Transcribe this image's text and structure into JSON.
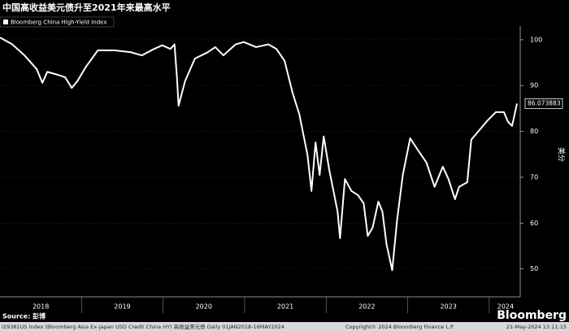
{
  "chart_data": {
    "type": "line",
    "title": "中国高收益美元债升至2021年来最高水平",
    "y_axis_label": "美分",
    "source": "Source: 彭博",
    "brand": "Bloomberg",
    "xlim": [
      2018,
      2024.38
    ],
    "xticks": [
      {
        "value": 2018.5,
        "label": "2018"
      },
      {
        "value": 2019.5,
        "label": "2019"
      },
      {
        "value": 2020.5,
        "label": "2020"
      },
      {
        "value": 2021.5,
        "label": "2021"
      },
      {
        "value": 2022.5,
        "label": "2022"
      },
      {
        "value": 2023.5,
        "label": "2023"
      },
      {
        "value": 2024.2,
        "label": "2024"
      }
    ],
    "ylim": [
      43.9,
      103
    ],
    "yticks": [
      50,
      60,
      70,
      80,
      90,
      100
    ],
    "grid": true,
    "x": [
      2018.0,
      2018.15,
      2018.3,
      2018.45,
      2018.52,
      2018.58,
      2018.7,
      2018.8,
      2018.88,
      2018.95,
      2019.05,
      2019.2,
      2019.4,
      2019.6,
      2019.74,
      2019.89,
      2019.99,
      2020.09,
      2020.14,
      2020.17,
      2020.19,
      2020.27,
      2020.39,
      2020.54,
      2020.64,
      2020.74,
      2020.89,
      2020.99,
      2021.14,
      2021.29,
      2021.39,
      2021.49,
      2021.59,
      2021.67,
      2021.73,
      2021.77,
      2021.82,
      2021.87,
      2021.92,
      2021.97,
      2022.04,
      2022.09,
      2022.14,
      2022.17,
      2022.23,
      2022.31,
      2022.39,
      2022.46,
      2022.51,
      2022.57,
      2022.64,
      2022.69,
      2022.74,
      2022.81,
      2022.87,
      2022.94,
      2023.03,
      2023.13,
      2023.23,
      2023.33,
      2023.43,
      2023.5,
      2023.58,
      2023.63,
      2023.73,
      2023.78,
      2023.88,
      2023.98,
      2024.08,
      2024.18,
      2024.23,
      2024.28,
      2024.34
    ],
    "series": [
      {
        "name": "Bloomberg China High-Yield Index",
        "color": "#ffffff",
        "values": [
          100.5,
          99,
          96.6,
          93.6,
          90.6,
          93,
          92.4,
          91.8,
          89.5,
          91,
          94,
          97.7,
          97.7,
          97.3,
          96.6,
          98,
          98.8,
          98,
          99,
          91.8,
          85.6,
          91,
          95.9,
          97.2,
          98.4,
          96.6,
          99,
          99.5,
          98.4,
          99,
          98,
          95.4,
          88.3,
          83.8,
          78.5,
          75,
          67,
          77.6,
          70.5,
          78.9,
          71.4,
          67,
          62.5,
          56.7,
          69.6,
          67,
          66.1,
          64.3,
          57.2,
          59,
          64.7,
          62.5,
          55.4,
          49.7,
          60.7,
          70.5,
          78.5,
          75.8,
          73.2,
          67.9,
          72.3,
          69.6,
          65.2,
          67.9,
          68.9,
          78.2,
          80.3,
          82.4,
          84.2,
          84.2,
          82.1,
          81.2,
          86.073883
        ]
      }
    ]
  },
  "footer": {
    "index": "I29381US Index (Bloomberg Asia Ex-Japan USD Credit China HY) 高收益美元债  Daily 01JAN2018-16MAY2024",
    "copyright": "Copyright© 2024 Bloomberg Finance L.P.",
    "timestamp": "21-May-2024 13:11:15"
  }
}
